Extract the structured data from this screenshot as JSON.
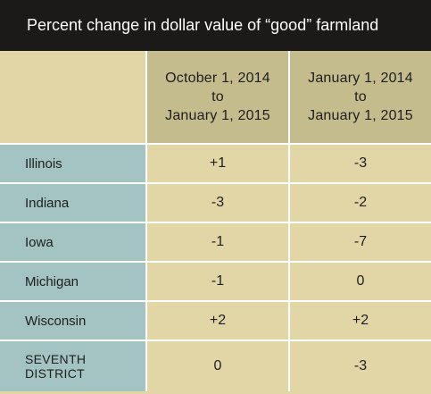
{
  "title": "Percent change in dollar value of “good” farmland",
  "columns": [
    {
      "line1": "October 1, 2014",
      "line2": "to",
      "line3": "January 1, 2015"
    },
    {
      "line1": "January 1, 2014",
      "line2": "to",
      "line3": "January 1, 2015"
    }
  ],
  "rows": [
    {
      "state": "Illinois",
      "v1": "+1",
      "v2": "-3"
    },
    {
      "state": "Indiana",
      "v1": "-3",
      "v2": "-2"
    },
    {
      "state": "Iowa",
      "v1": "-1",
      "v2": "-7"
    },
    {
      "state": "Michigan",
      "v1": "-1",
      "v2": "0"
    },
    {
      "state": "Wisconsin",
      "v1": "+2",
      "v2": "+2"
    },
    {
      "state_line1": "SEVENTH",
      "state_line2": "DISTRICT",
      "v1": "0",
      "v2": "-3"
    }
  ],
  "colors": {
    "title_bg": "#1b1a18",
    "title_text": "#ffffff",
    "header_bg": "#c4bc8d",
    "state_bg": "#a3c4c2",
    "value_bg": "#e2d6a6",
    "grid_lines": "#ffffff"
  }
}
